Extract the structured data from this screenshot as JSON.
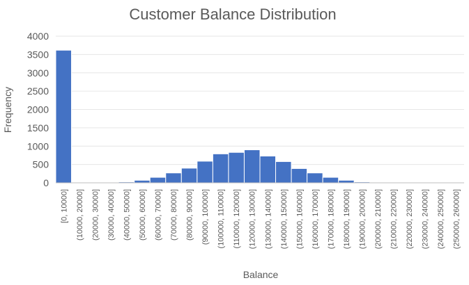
{
  "chart_data": {
    "type": "bar",
    "title": "Customer Balance Distribution",
    "xlabel": "Balance",
    "ylabel": "Frequency",
    "ylim": [
      0,
      4000
    ],
    "yticks": [
      "0",
      "500",
      "1000",
      "1500",
      "2000",
      "2500",
      "3000",
      "3500",
      "4000"
    ],
    "grid": true,
    "legend": "none",
    "bar_color": "#4472C4",
    "grid_color": "#e6e6e6",
    "axis_color": "#bfbfbf",
    "text_color": "#595959",
    "categories": [
      "[0, 10000]",
      "(10000, 20000]",
      "(20000, 30000]",
      "(30000, 40000]",
      "(40000, 50000]",
      "(50000, 60000]",
      "(60000, 70000]",
      "(70000, 80000]",
      "(80000, 90000]",
      "(90000, 100000]",
      "(100000, 110000]",
      "(110000, 120000]",
      "(120000, 130000]",
      "(130000, 140000]",
      "(140000, 150000]",
      "(150000, 160000]",
      "(160000, 170000]",
      "(170000, 180000]",
      "(180000, 190000]",
      "(190000, 200000]",
      "(200000, 210000]",
      "(210000, 220000]",
      "(220000, 230000]",
      "(230000, 240000]",
      "(240000, 250000]",
      "(250000, 260000]"
    ],
    "values": [
      3617,
      2,
      4,
      7,
      25,
      70,
      150,
      270,
      400,
      590,
      790,
      830,
      900,
      730,
      580,
      390,
      270,
      150,
      70,
      25,
      7,
      3,
      2,
      1,
      1,
      1
    ]
  }
}
